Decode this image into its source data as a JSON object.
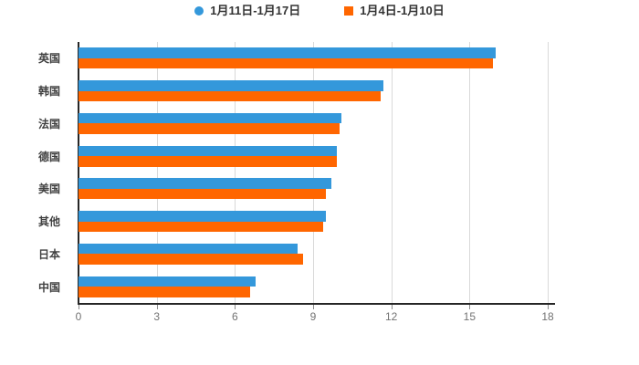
{
  "chart_data": {
    "type": "bar",
    "orientation": "horizontal",
    "title": "",
    "xlabel": "",
    "ylabel": "",
    "categories": [
      "英国",
      "韩国",
      "法国",
      "德国",
      "美国",
      "其他",
      "日本",
      "中国"
    ],
    "series": [
      {
        "name": "1月11日-1月17日",
        "marker": "circle",
        "color": "#3498db",
        "values": [
          16.0,
          11.7,
          10.1,
          9.9,
          9.7,
          9.5,
          8.4,
          6.8
        ]
      },
      {
        "name": "1月4日-1月10日",
        "marker": "square",
        "color": "#ff6600",
        "values": [
          15.9,
          11.6,
          10.0,
          9.9,
          9.5,
          9.4,
          8.6,
          6.6
        ]
      }
    ],
    "xlim": [
      0,
      18
    ],
    "xticks": [
      0,
      3,
      6,
      9,
      12,
      15,
      18
    ],
    "grid": true,
    "legend_position": "top",
    "colors": {
      "axis": "#262626",
      "gridline": "#d9d9d9",
      "tick_label": "#737373",
      "category_label": "#404040",
      "legend_text": "#333333",
      "background": "#ffffff"
    }
  }
}
